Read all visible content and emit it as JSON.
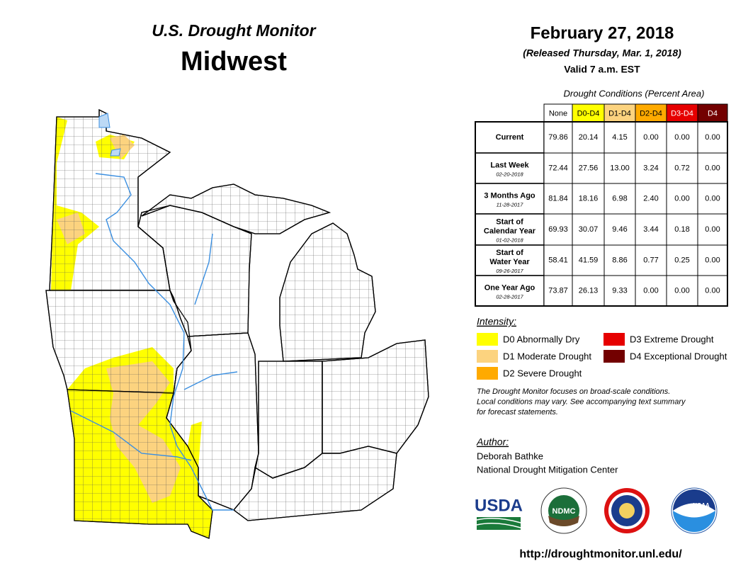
{
  "header": {
    "program": "U.S. Drought Monitor",
    "region": "Midwest",
    "date": "February 27, 2018",
    "released": "(Released Thursday, Mar. 1, 2018)",
    "valid": "Valid 7 a.m. EST"
  },
  "table": {
    "caption": "Drought Conditions (Percent Area)",
    "columns": [
      "None",
      "D0-D4",
      "D1-D4",
      "D2-D4",
      "D3-D4",
      "D4"
    ],
    "column_colors": [
      "#ffffff",
      "#ffff00",
      "#fcd37f",
      "#ffaa00",
      "#e60000",
      "#730000"
    ],
    "rows": [
      {
        "label": [
          "Current"
        ],
        "values": [
          "79.86",
          "20.14",
          "4.15",
          "0.00",
          "0.00",
          "0.00"
        ]
      },
      {
        "label": [
          "Last Week"
        ],
        "date": "02-20-2018",
        "values": [
          "72.44",
          "27.56",
          "13.00",
          "3.24",
          "0.72",
          "0.00"
        ]
      },
      {
        "label": [
          "3 Months Ago"
        ],
        "date": "11-28-2017",
        "values": [
          "81.84",
          "18.16",
          "6.98",
          "2.40",
          "0.00",
          "0.00"
        ]
      },
      {
        "label": [
          "Start of",
          "Calendar Year"
        ],
        "date": "01-02-2018",
        "values": [
          "69.93",
          "30.07",
          "9.46",
          "3.44",
          "0.18",
          "0.00"
        ]
      },
      {
        "label": [
          "Start of",
          "Water Year"
        ],
        "date": "09-26-2017",
        "values": [
          "58.41",
          "41.59",
          "8.86",
          "0.77",
          "0.25",
          "0.00"
        ]
      },
      {
        "label": [
          "One Year Ago"
        ],
        "date": "02-28-2017",
        "values": [
          "73.87",
          "26.13",
          "9.33",
          "0.00",
          "0.00",
          "0.00"
        ]
      }
    ]
  },
  "legend": {
    "title": "Intensity:",
    "items": [
      {
        "label": "D0 Abnormally Dry",
        "color": "#ffff00"
      },
      {
        "label": "D1 Moderate Drought",
        "color": "#fcd37f"
      },
      {
        "label": "D2 Severe Drought",
        "color": "#ffaa00"
      },
      {
        "label": "D3 Extreme Drought",
        "color": "#e60000"
      },
      {
        "label": "D4 Exceptional Drought",
        "color": "#730000"
      }
    ]
  },
  "note": [
    "The Drought Monitor focuses on broad-scale conditions.",
    "Local conditions may vary. See accompanying text summary",
    "for forecast statements."
  ],
  "author": {
    "title": "Author:",
    "lines": [
      "Deborah Bathke",
      "National Drought Mitigation Center"
    ]
  },
  "logos": [
    "USDA",
    "NDMC",
    "NOAA"
  ],
  "url": "http://droughtmonitor.unl.edu/"
}
